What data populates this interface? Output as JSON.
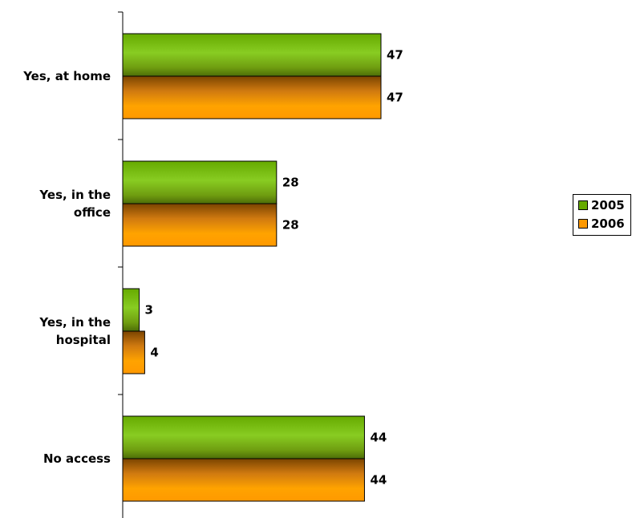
{
  "chart_data": {
    "type": "bar",
    "orientation": "horizontal",
    "categories": [
      "Yes, at home",
      "Yes, in the office",
      "Yes, in the hospital",
      "No access"
    ],
    "category_lines": [
      [
        "Yes, at home"
      ],
      [
        "Yes, in the",
        "office"
      ],
      [
        "Yes, in the",
        "hospital"
      ],
      [
        "No access"
      ]
    ],
    "series": [
      {
        "name": "2005",
        "values": [
          47,
          28,
          3,
          44
        ],
        "color": "#66aa00"
      },
      {
        "name": "2006",
        "values": [
          47,
          28,
          4,
          44
        ],
        "color": "#ff9900"
      }
    ],
    "xlim": [
      0,
      60
    ],
    "grid": false,
    "legend_position": "right"
  }
}
